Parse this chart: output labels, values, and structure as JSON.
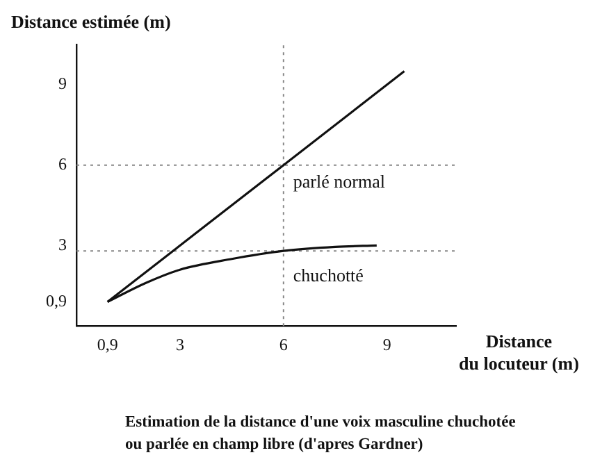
{
  "chart_data": {
    "type": "line",
    "ylabel": "Distance estimée (m)",
    "xlabel": "Distance\ndu locuteur (m)",
    "annotations": [
      "Estimation de la distance d'une voix masculine chuchotée\nou parlée en champ libre (d'apres Gardner)"
    ],
    "xlim": [
      0,
      11
    ],
    "ylim": [
      0,
      10.5
    ],
    "xticks": [
      {
        "value": 0.9,
        "label": "0,9"
      },
      3,
      6,
      9
    ],
    "yticks": [
      {
        "value": 0.9,
        "label": "0,9"
      },
      3,
      6,
      9
    ],
    "series": [
      {
        "name": "parlé normal",
        "color": "#111111",
        "x": [
          0.9,
          6,
          9.5
        ],
        "values": [
          0.9,
          6,
          9.5
        ]
      },
      {
        "name": "chuchotté",
        "color": "#111111",
        "x": [
          0.9,
          2,
          3,
          4.5,
          6,
          7.5,
          8.7
        ],
        "values": [
          0.9,
          1.6,
          2.1,
          2.5,
          2.8,
          2.95,
          3.0
        ]
      }
    ],
    "ref_lines": [
      {
        "axis": "x",
        "value": 6,
        "color": "#888888",
        "line_style": "dotted"
      },
      {
        "axis": "y",
        "value": 6,
        "color": "#888888",
        "line_style": "dotted"
      },
      {
        "axis": "y",
        "value": 2.8,
        "color": "#888888",
        "line_style": "dotted"
      }
    ],
    "grid": false,
    "legend": false,
    "marker": "none",
    "line_style": "solid"
  }
}
